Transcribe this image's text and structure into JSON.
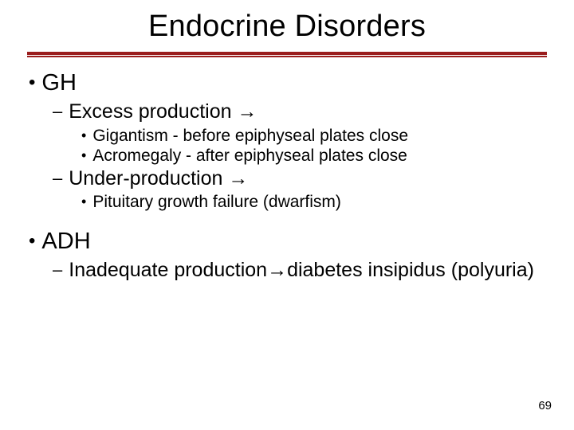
{
  "title": "Endocrine Disorders",
  "page_number": "69",
  "rule_color": "#9a1d1d",
  "bullet_color": "#000000",
  "fonts": {
    "title_size": 38,
    "lvl1_size": 29,
    "lvl2_size": 25,
    "lvl3_size": 21,
    "pagenum_size": 15
  },
  "bullets": {
    "lvl1_glyph": "•",
    "lvl2_glyph": "–",
    "lvl3_glyph": "•"
  },
  "items": {
    "a": {
      "text": "GH"
    },
    "a1": {
      "text": "Excess production →"
    },
    "a1a": {
      "text": "Gigantism - before epiphyseal plates close"
    },
    "a1b": {
      "text": "Acromegaly - after epiphyseal plates close"
    },
    "a2": {
      "text": "Under-production →"
    },
    "a2a": {
      "text": "Pituitary growth failure (dwarfism)"
    },
    "b": {
      "text": "ADH"
    },
    "b1": {
      "text": "Inadequate production→diabetes insipidus (polyuria)"
    }
  }
}
